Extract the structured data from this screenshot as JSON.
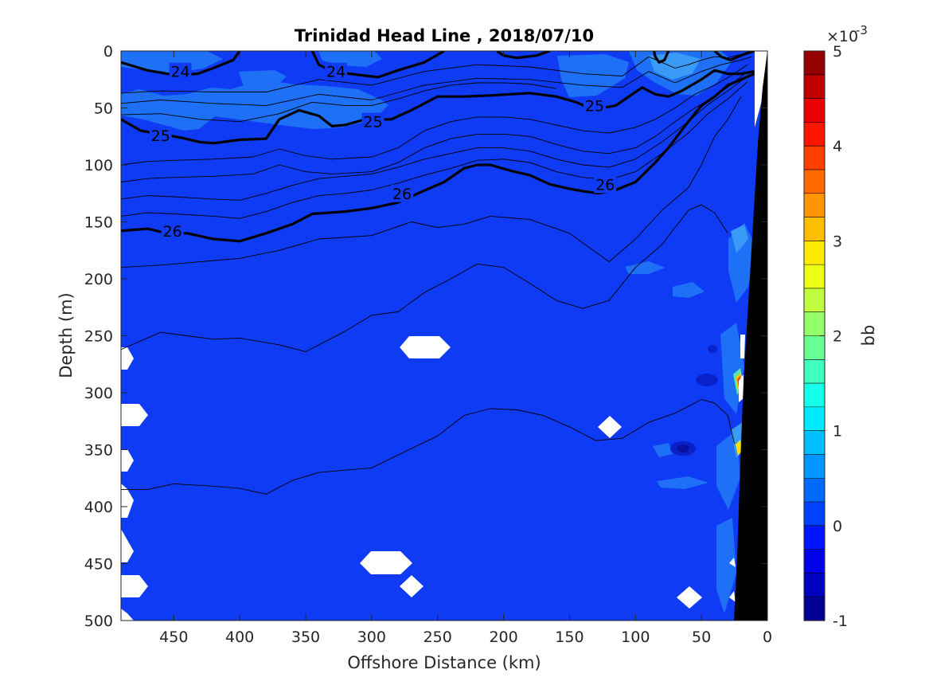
{
  "chart_data": {
    "type": "heatmap",
    "title": "Trinidad Head Line , 2018/07/10",
    "xlabel": "Offshore Distance (km)",
    "ylabel": "Depth (m)",
    "xlim": [
      490,
      0
    ],
    "ylim": [
      0,
      500
    ],
    "x_ticks": [
      450,
      400,
      350,
      300,
      250,
      200,
      150,
      100,
      50,
      0
    ],
    "y_ticks": [
      0,
      50,
      100,
      150,
      200,
      250,
      300,
      350,
      400,
      450,
      500
    ],
    "colorbar": {
      "label": "bb",
      "exponent_label": "×10",
      "exponent_power": "-3",
      "min": -1,
      "max": 5,
      "ticks": [
        -1,
        0,
        1,
        2,
        3,
        4,
        5
      ],
      "colormap": "jet"
    },
    "background_value": 0,
    "background_color": "#0F3BF5",
    "isopycnals": [
      {
        "label": "24",
        "bold": true,
        "x": [
          490,
          470,
          455,
          445,
          432,
          420,
          405,
          400
        ],
        "y": [
          10,
          17,
          20,
          21,
          20,
          15,
          8,
          0
        ],
        "labels_at": [
          [
            445,
            18
          ]
        ]
      },
      {
        "label": "24",
        "bold": true,
        "x": [
          345,
          340,
          330,
          310,
          295,
          280,
          260,
          245
        ],
        "y": [
          0,
          12,
          18,
          21,
          23,
          17,
          10,
          0
        ],
        "labels_at": [
          [
            327,
            18
          ]
        ]
      },
      {
        "label": "24",
        "bold": true,
        "x": [
          165,
          175,
          190,
          200,
          205
        ],
        "y": [
          0,
          4,
          6,
          4,
          0
        ]
      },
      {
        "label": "24",
        "bold": true,
        "x": [
          75,
          78,
          82,
          85,
          86
        ],
        "y": [
          0,
          8,
          10,
          5,
          0
        ]
      },
      {
        "label": "24",
        "bold": true,
        "x": [
          40,
          35,
          28,
          18,
          10
        ],
        "y": [
          0,
          5,
          8,
          3,
          0
        ]
      },
      {
        "label": "25",
        "bold": true,
        "x": [
          490,
          475,
          460,
          445,
          430,
          420,
          400,
          380,
          370,
          355,
          340,
          330,
          320,
          305,
          295,
          285,
          270,
          250,
          230,
          210,
          195,
          180,
          160,
          145,
          135,
          125,
          115,
          105,
          95,
          85,
          75,
          65,
          50,
          40,
          30,
          20,
          10
        ],
        "y": [
          60,
          70,
          73,
          76,
          80,
          81,
          78,
          77,
          60,
          52,
          57,
          66,
          65,
          60,
          60,
          60,
          52,
          40,
          40,
          39,
          38,
          37,
          40,
          45,
          50,
          50,
          48,
          40,
          32,
          38,
          40,
          35,
          25,
          17,
          20,
          20,
          18
        ],
        "labels_at": [
          [
            460,
            74
          ],
          [
            299,
            62
          ],
          [
            131,
            48
          ]
        ]
      },
      {
        "label": "26",
        "bold": true,
        "x": [
          490,
          470,
          455,
          440,
          420,
          400,
          380,
          360,
          345,
          320,
          300,
          280,
          265,
          255,
          245,
          230,
          220,
          210,
          195,
          180,
          165,
          150,
          140,
          128,
          115,
          100,
          85,
          75,
          62,
          50,
          40,
          30,
          20,
          10
        ],
        "y": [
          158,
          156,
          160,
          160,
          165,
          167,
          160,
          152,
          143,
          141,
          138,
          133,
          125,
          120,
          115,
          103,
          100,
          100,
          105,
          109,
          117,
          121,
          123,
          125,
          122,
          115,
          98,
          85,
          65,
          48,
          40,
          30,
          25,
          20
        ],
        "labels_at": [
          [
            451,
            158
          ],
          [
            277,
            125
          ],
          [
            123,
            117
          ]
        ]
      },
      {
        "label": "",
        "bold": false,
        "x": [
          490,
          460,
          430,
          400,
          370,
          340,
          300,
          270,
          250,
          230,
          210,
          180,
          150,
          120,
          100,
          80,
          60,
          50,
          40,
          30,
          20
        ],
        "y": [
          190,
          188,
          185,
          182,
          175,
          165,
          162,
          150,
          155,
          152,
          145,
          148,
          160,
          185,
          165,
          140,
          120,
          100,
          75,
          60,
          40
        ]
      },
      {
        "label": "",
        "bold": false,
        "x": [
          490,
          460,
          440,
          420,
          400,
          370,
          350,
          320,
          300,
          280,
          260,
          240,
          220,
          200,
          180,
          160,
          140,
          120,
          100,
          80,
          60,
          50,
          40,
          30
        ],
        "y": [
          262,
          247,
          250,
          253,
          252,
          258,
          264,
          246,
          232,
          229,
          212,
          200,
          187,
          190,
          204,
          219,
          226,
          219,
          190,
          170,
          140,
          135,
          142,
          160
        ]
      },
      {
        "label": "",
        "bold": false,
        "x": [
          490,
          470,
          450,
          420,
          400,
          380,
          360,
          340,
          320,
          300,
          270,
          250,
          230,
          210,
          190,
          170,
          150,
          130,
          110,
          90,
          70,
          60,
          50,
          40,
          30,
          25
        ],
        "y": [
          385,
          385,
          380,
          382,
          384,
          389,
          377,
          370,
          368,
          366,
          349,
          338,
          320,
          314,
          315,
          320,
          330,
          342,
          340,
          326,
          318,
          312,
          306,
          309,
          320,
          345
        ]
      },
      {
        "label": "",
        "bold": false,
        "x": [
          490,
          460,
          420,
          380,
          340,
          300,
          260,
          220,
          180,
          140,
          110,
          90,
          70,
          60,
          50,
          40,
          30,
          20,
          12
        ],
        "y": [
          37,
          35,
          36,
          36,
          25,
          30,
          18,
          12,
          14,
          20,
          22,
          5,
          15,
          12,
          8,
          5,
          6,
          3,
          0
        ]
      },
      {
        "label": "",
        "bold": false,
        "x": [
          490,
          460,
          420,
          380,
          340,
          300,
          260,
          220,
          180,
          140,
          110,
          90,
          70,
          50,
          35,
          20,
          12
        ],
        "y": [
          46,
          43,
          46,
          48,
          38,
          43,
          30,
          24,
          25,
          30,
          32,
          18,
          28,
          18,
          12,
          8,
          5
        ]
      },
      {
        "label": "",
        "bold": false,
        "x": [
          490,
          470,
          450,
          420,
          390,
          370,
          350,
          330,
          300,
          280,
          260,
          240,
          220,
          200,
          180,
          160,
          140,
          120,
          100,
          85,
          70,
          55,
          40,
          28,
          15
        ],
        "y": [
          100,
          97,
          96,
          95,
          93,
          86,
          92,
          95,
          93,
          85,
          70,
          62,
          58,
          58,
          60,
          65,
          70,
          72,
          67,
          60,
          50,
          38,
          30,
          22,
          12
        ]
      },
      {
        "label": "",
        "bold": false,
        "x": [
          490,
          470,
          450,
          420,
          390,
          370,
          350,
          330,
          300,
          280,
          260,
          240,
          220,
          200,
          180,
          160,
          140,
          120,
          100,
          85,
          70,
          55,
          40,
          28,
          15
        ],
        "y": [
          115,
          112,
          111,
          110,
          108,
          100,
          106,
          108,
          106,
          98,
          85,
          77,
          73,
          73,
          75,
          82,
          88,
          90,
          85,
          75,
          62,
          50,
          40,
          30,
          18
        ]
      },
      {
        "label": "",
        "bold": false,
        "x": [
          490,
          470,
          450,
          420,
          400,
          380,
          360,
          340,
          320,
          300,
          280,
          260,
          240,
          220,
          200,
          180,
          160,
          140,
          120,
          100,
          80,
          60,
          45,
          30,
          15
        ],
        "y": [
          130,
          127,
          128,
          130,
          131,
          125,
          118,
          112,
          110,
          108,
          102,
          95,
          90,
          85,
          85,
          88,
          95,
          100,
          102,
          95,
          80,
          62,
          47,
          35,
          22
        ]
      },
      {
        "label": "",
        "bold": false,
        "x": [
          490,
          470,
          450,
          420,
          400,
          380,
          360,
          340,
          320,
          300,
          280,
          260,
          240,
          220,
          200,
          180,
          160,
          140,
          120,
          100,
          80,
          60,
          45,
          30,
          15
        ],
        "y": [
          145,
          142,
          143,
          145,
          147,
          141,
          133,
          127,
          125,
          122,
          116,
          109,
          103,
          96,
          95,
          98,
          106,
          111,
          113,
          106,
          90,
          72,
          55,
          42,
          27
        ]
      },
      {
        "label": "",
        "bold": false,
        "x": [
          490,
          460,
          430,
          400,
          370,
          345,
          320,
          300,
          280,
          260,
          240,
          220,
          200,
          180,
          160
        ],
        "y": [
          56,
          55,
          60,
          62,
          55,
          45,
          48,
          48,
          42,
          35,
          30,
          28,
          28,
          29,
          33
        ]
      }
    ]
  }
}
